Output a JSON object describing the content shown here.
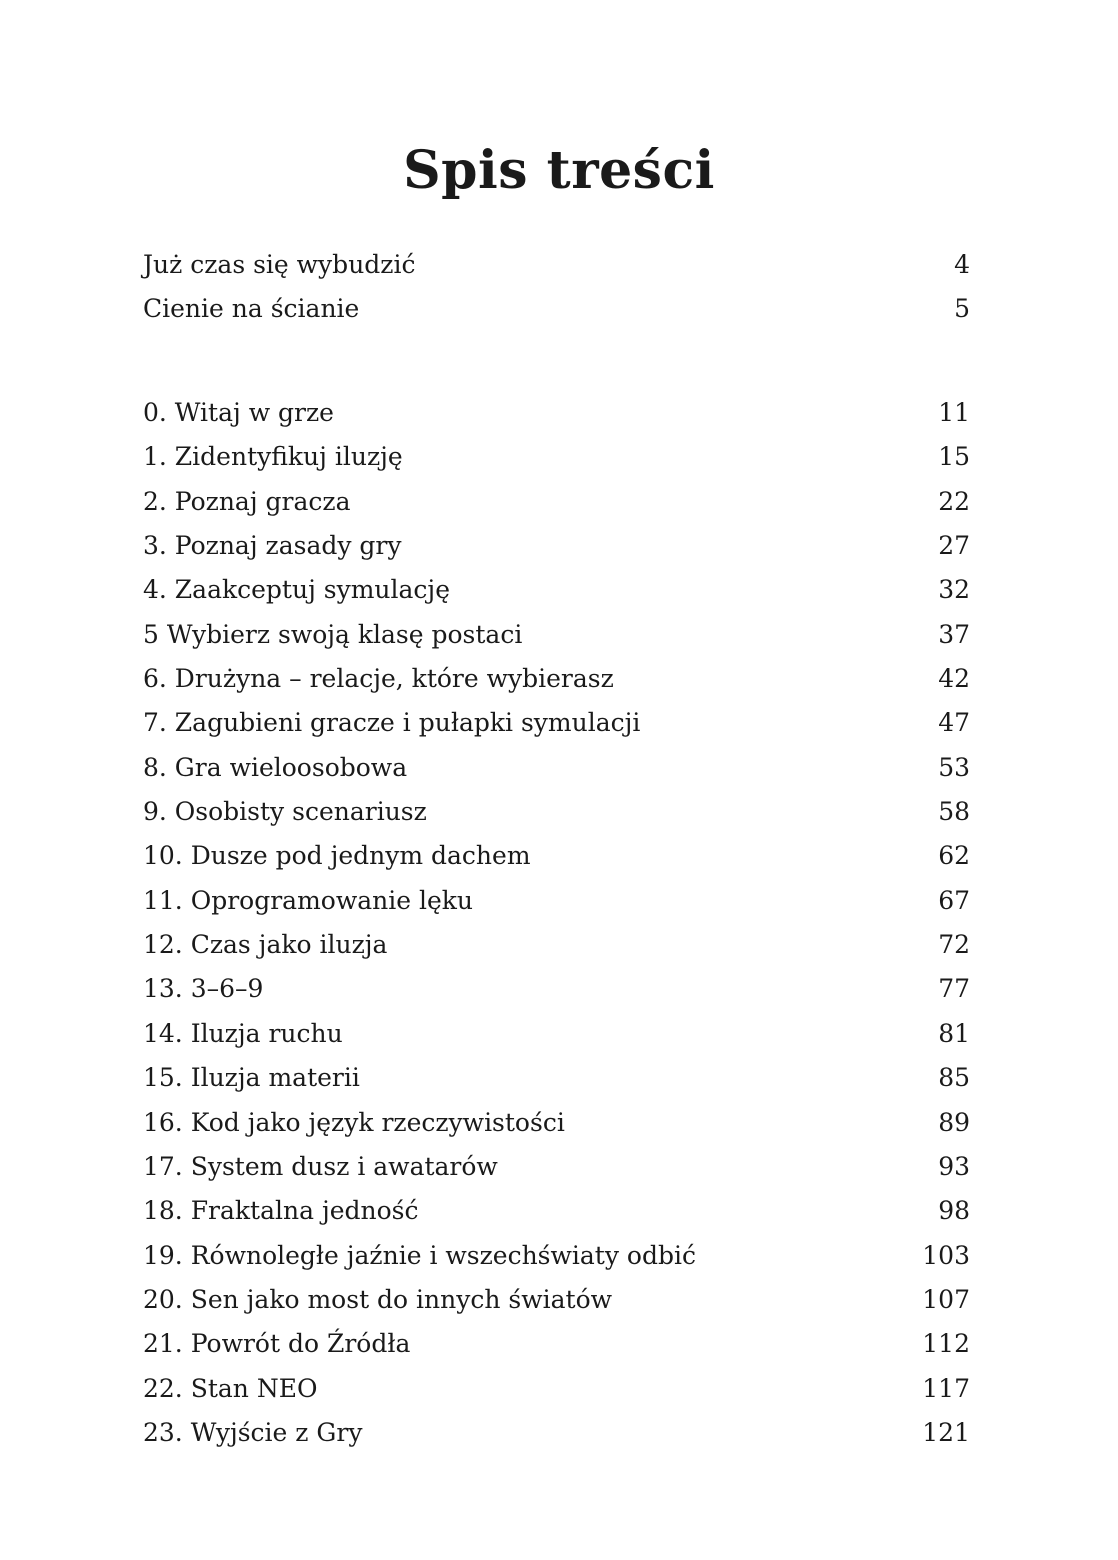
{
  "title": "Spis treści",
  "intro": [
    {
      "label": "Już czas się wybudzić",
      "page": "4"
    },
    {
      "label": "Cienie na ścianie",
      "page": "5"
    }
  ],
  "chapters": [
    {
      "label": "0. Witaj w grze",
      "page": "11"
    },
    {
      "label": "1. Zidentyfikuj iluzję",
      "page": "15"
    },
    {
      "label": "2. Poznaj gracza",
      "page": "22"
    },
    {
      "label": "3. Poznaj zasady gry",
      "page": "27"
    },
    {
      "label": "4. Zaakceptuj symulację",
      "page": "32"
    },
    {
      "label": "5 Wybierz swoją klasę postaci",
      "page": "37"
    },
    {
      "label": "6. Drużyna – relacje, które wybierasz",
      "page": "42"
    },
    {
      "label": "7. Zagubieni gracze i pułapki symulacji",
      "page": "47"
    },
    {
      "label": "8. Gra wieloosobowa",
      "page": "53"
    },
    {
      "label": "9. Osobisty scenariusz",
      "page": "58"
    },
    {
      "label": "10. Dusze pod jednym dachem",
      "page": "62"
    },
    {
      "label": "11. Oprogramowanie lęku",
      "page": "67"
    },
    {
      "label": "12. Czas jako iluzja",
      "page": "72"
    },
    {
      "label": "13. 3–6–9",
      "page": "77"
    },
    {
      "label": "14. Iluzja ruchu",
      "page": "81"
    },
    {
      "label": "15. Iluzja materii",
      "page": "85"
    },
    {
      "label": "16. Kod jako język rzeczywistości",
      "page": "89"
    },
    {
      "label": "17. System dusz i awatarów",
      "page": "93"
    },
    {
      "label": "18. Fraktalna jedność",
      "page": "98"
    },
    {
      "label": "19. Równoległe jaźnie i wszechświaty odbić",
      "page": "103"
    },
    {
      "label": "20. Sen jako most do innych światów",
      "page": "107"
    },
    {
      "label": "21. Powrót do Źródła",
      "page": "112"
    },
    {
      "label": "22. Stan NEO",
      "page": "117"
    },
    {
      "label": "23. Wyjście z Gry",
      "page": "121"
    }
  ]
}
